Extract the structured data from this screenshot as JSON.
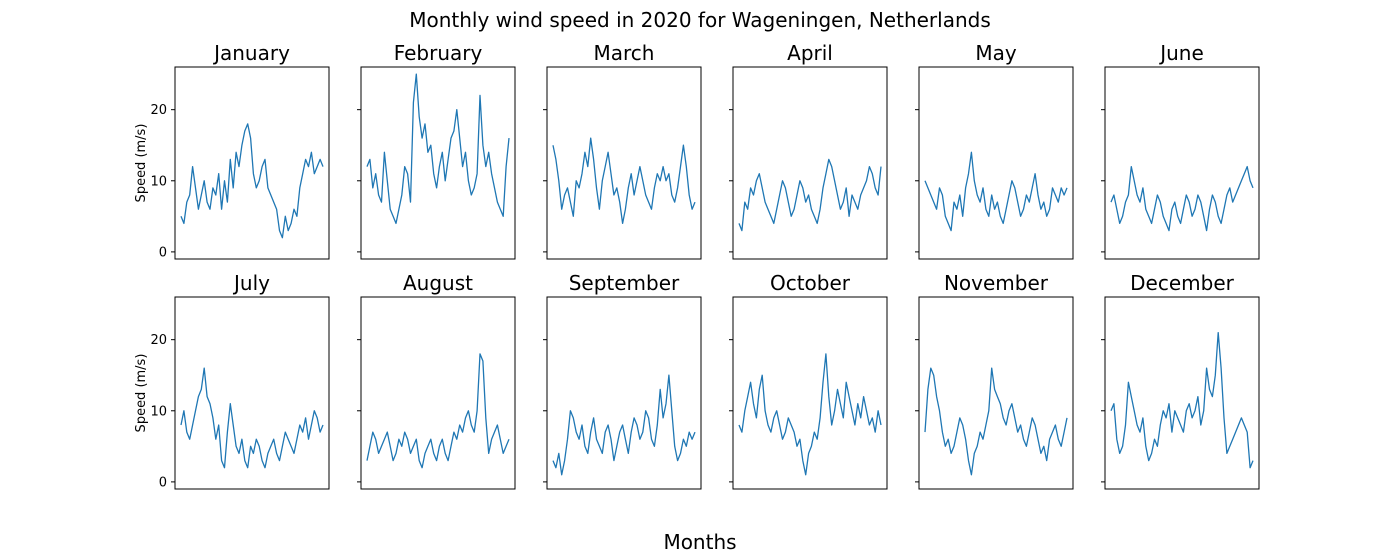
{
  "chart_data": {
    "type": "line",
    "title": "Monthly wind speed in 2020 for Wageningen, Netherlands",
    "xlabel": "Months",
    "ylabel": "Speed (m/s)",
    "ylim": [
      -1,
      26
    ],
    "yticks": [
      "0",
      "10",
      "20"
    ],
    "grid": false,
    "color": "#1f77b4",
    "panels": [
      {
        "title": "January",
        "values": [
          5,
          4,
          7,
          8,
          12,
          9,
          6,
          8,
          10,
          7,
          6,
          9,
          8,
          11,
          6,
          10,
          7,
          13,
          9,
          14,
          12,
          15,
          17,
          18,
          16,
          11,
          9,
          10,
          12,
          13,
          9,
          8,
          7,
          6,
          3,
          2,
          5,
          3,
          4,
          6,
          5,
          9,
          11,
          13,
          12,
          14,
          11,
          12,
          13,
          12
        ]
      },
      {
        "title": "February",
        "values": [
          12,
          13,
          9,
          11,
          8,
          7,
          14,
          10,
          6,
          5,
          4,
          6,
          8,
          12,
          11,
          7,
          21,
          25,
          19,
          16,
          18,
          14,
          15,
          11,
          9,
          12,
          14,
          10,
          13,
          16,
          17,
          20,
          16,
          12,
          14,
          10,
          8,
          9,
          11,
          22,
          15,
          12,
          14,
          11,
          9,
          7,
          6,
          5,
          12,
          16
        ]
      },
      {
        "title": "March",
        "values": [
          15,
          13,
          10,
          6,
          8,
          9,
          7,
          5,
          10,
          9,
          11,
          14,
          12,
          16,
          13,
          9,
          6,
          10,
          12,
          14,
          11,
          8,
          9,
          7,
          4,
          6,
          9,
          11,
          8,
          10,
          12,
          10,
          8,
          7,
          6,
          9,
          11,
          10,
          12,
          10,
          11,
          8,
          7,
          9,
          12,
          15,
          12,
          8,
          6,
          7
        ]
      },
      {
        "title": "April",
        "values": [
          4,
          3,
          7,
          6,
          9,
          8,
          10,
          11,
          9,
          7,
          6,
          5,
          4,
          6,
          8,
          10,
          9,
          7,
          5,
          6,
          8,
          10,
          9,
          7,
          8,
          6,
          5,
          4,
          6,
          9,
          11,
          13,
          12,
          10,
          8,
          6,
          7,
          9,
          5,
          8,
          7,
          6,
          8,
          9,
          10,
          12,
          11,
          9,
          8,
          12
        ]
      },
      {
        "title": "May",
        "values": [
          10,
          9,
          8,
          7,
          6,
          9,
          8,
          5,
          4,
          3,
          7,
          6,
          8,
          5,
          9,
          11,
          14,
          10,
          8,
          7,
          9,
          6,
          5,
          8,
          6,
          7,
          5,
          4,
          6,
          8,
          10,
          9,
          7,
          5,
          6,
          8,
          7,
          9,
          11,
          8,
          6,
          7,
          5,
          6,
          9,
          8,
          7,
          9,
          8,
          9
        ]
      },
      {
        "title": "June",
        "values": [
          7,
          8,
          6,
          4,
          5,
          7,
          8,
          12,
          10,
          8,
          7,
          9,
          6,
          5,
          4,
          6,
          8,
          7,
          5,
          4,
          3,
          6,
          7,
          5,
          4,
          6,
          8,
          7,
          5,
          6,
          8,
          7,
          5,
          3,
          6,
          8,
          7,
          5,
          4,
          6,
          8,
          9,
          7,
          8,
          9,
          10,
          11,
          12,
          10,
          9
        ]
      },
      {
        "title": "July",
        "values": [
          8,
          10,
          7,
          6,
          8,
          10,
          12,
          13,
          16,
          12,
          11,
          9,
          6,
          8,
          3,
          2,
          7,
          11,
          8,
          5,
          4,
          6,
          3,
          2,
          5,
          4,
          6,
          5,
          3,
          2,
          4,
          5,
          6,
          4,
          3,
          5,
          7,
          6,
          5,
          4,
          6,
          8,
          7,
          9,
          6,
          8,
          10,
          9,
          7,
          8
        ]
      },
      {
        "title": "August",
        "values": [
          3,
          5,
          7,
          6,
          4,
          5,
          6,
          7,
          5,
          3,
          4,
          6,
          5,
          7,
          6,
          4,
          5,
          6,
          3,
          2,
          4,
          5,
          6,
          4,
          3,
          5,
          6,
          4,
          3,
          5,
          7,
          6,
          8,
          7,
          9,
          10,
          8,
          7,
          10,
          18,
          17,
          9,
          4,
          6,
          7,
          8,
          6,
          4,
          5,
          6
        ]
      },
      {
        "title": "September",
        "values": [
          3,
          2,
          4,
          1,
          3,
          6,
          10,
          9,
          7,
          6,
          8,
          5,
          4,
          7,
          9,
          6,
          5,
          4,
          7,
          8,
          6,
          3,
          5,
          7,
          8,
          6,
          4,
          7,
          9,
          8,
          6,
          7,
          10,
          9,
          6,
          5,
          8,
          13,
          9,
          11,
          15,
          10,
          5,
          3,
          4,
          6,
          5,
          7,
          6,
          7
        ]
      },
      {
        "title": "October",
        "values": [
          8,
          7,
          10,
          12,
          14,
          11,
          9,
          13,
          15,
          10,
          8,
          7,
          9,
          10,
          8,
          6,
          7,
          9,
          8,
          7,
          5,
          6,
          3,
          1,
          4,
          5,
          7,
          6,
          9,
          14,
          18,
          12,
          8,
          10,
          13,
          11,
          9,
          14,
          12,
          10,
          8,
          11,
          9,
          12,
          10,
          8,
          9,
          7,
          10,
          8
        ]
      },
      {
        "title": "November",
        "values": [
          7,
          13,
          16,
          15,
          12,
          10,
          7,
          5,
          6,
          4,
          5,
          7,
          9,
          8,
          6,
          3,
          1,
          4,
          5,
          7,
          6,
          8,
          10,
          16,
          13,
          12,
          11,
          9,
          8,
          10,
          11,
          9,
          7,
          8,
          6,
          5,
          7,
          9,
          8,
          6,
          4,
          5,
          3,
          6,
          7,
          8,
          6,
          5,
          7,
          9
        ]
      },
      {
        "title": "December",
        "values": [
          10,
          11,
          6,
          4,
          5,
          8,
          14,
          12,
          10,
          8,
          7,
          9,
          5,
          3,
          4,
          6,
          5,
          8,
          10,
          9,
          11,
          7,
          10,
          9,
          8,
          7,
          10,
          11,
          9,
          10,
          12,
          8,
          10,
          16,
          13,
          12,
          15,
          21,
          16,
          9,
          4,
          5,
          6,
          7,
          8,
          9,
          8,
          7,
          2,
          3
        ]
      }
    ]
  }
}
